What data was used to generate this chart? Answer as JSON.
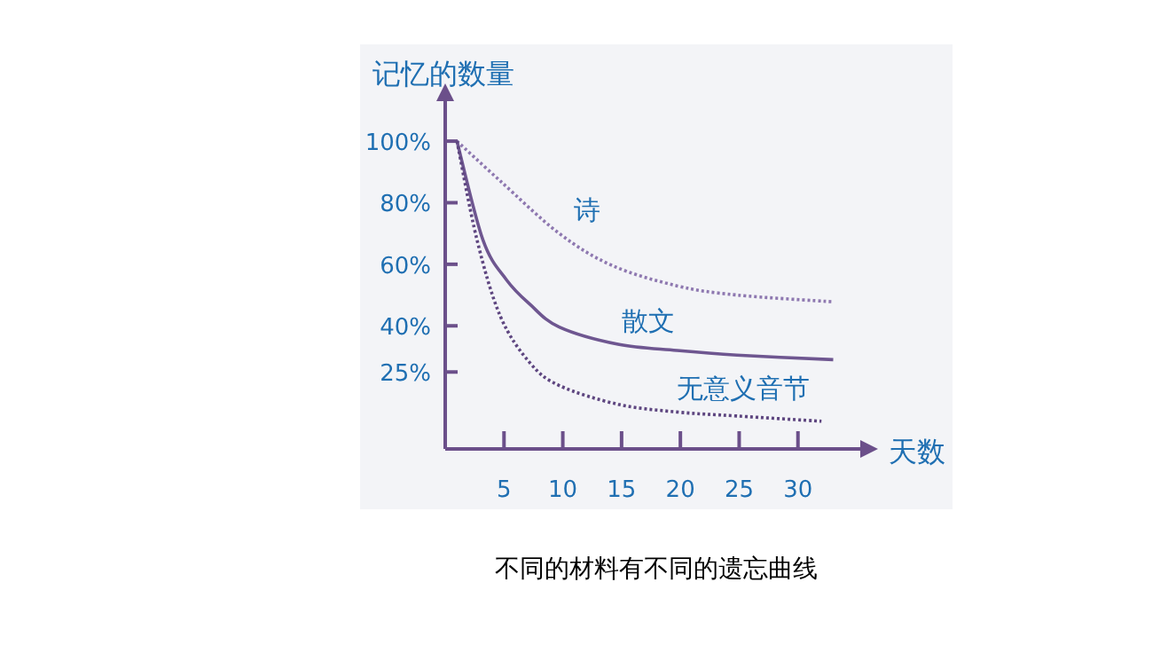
{
  "chart_data": {
    "type": "line",
    "ylabel": "记忆的数量",
    "xlabel": "天数",
    "xlim": [
      0,
      35.3
    ],
    "ylim": [
      0,
      113
    ],
    "xticks": [
      5,
      10,
      15,
      20,
      25,
      30
    ],
    "yticks": [
      {
        "value": 25,
        "label": "25%"
      },
      {
        "value": 40,
        "label": "40%"
      },
      {
        "value": 60,
        "label": "60%"
      },
      {
        "value": 80,
        "label": "80%"
      },
      {
        "value": 100,
        "label": "100%"
      }
    ],
    "grid": false,
    "marker": "none",
    "series": [
      {
        "name": "诗",
        "color": "#8e78b0",
        "line_style": "dotted",
        "x": [
          1,
          4.7,
          9.7,
          14.2,
          19.7,
          24.8,
          33
        ],
        "values": [
          100,
          87,
          70,
          59.6,
          53,
          50,
          47.8
        ]
      },
      {
        "name": "散文",
        "color": "#6e5690",
        "line_style": "solid",
        "x": [
          1,
          3.2,
          5.2,
          7.2,
          9.7,
          14.7,
          19.7,
          24.8,
          33
        ],
        "values": [
          100,
          68,
          55,
          47,
          39.6,
          34,
          32,
          30.5,
          29
        ]
      },
      {
        "name": "无意义音节",
        "color": "#5e4680",
        "line_style": "dotted",
        "x": [
          1,
          2.7,
          4.7,
          7.2,
          9.7,
          14.7,
          19.7,
          24.8,
          32
        ],
        "values": [
          100,
          68,
          43,
          28,
          20.6,
          14.5,
          12,
          10.7,
          9
        ]
      }
    ],
    "annotations": [
      "不同的材料有不同的遗忘曲线"
    ]
  }
}
